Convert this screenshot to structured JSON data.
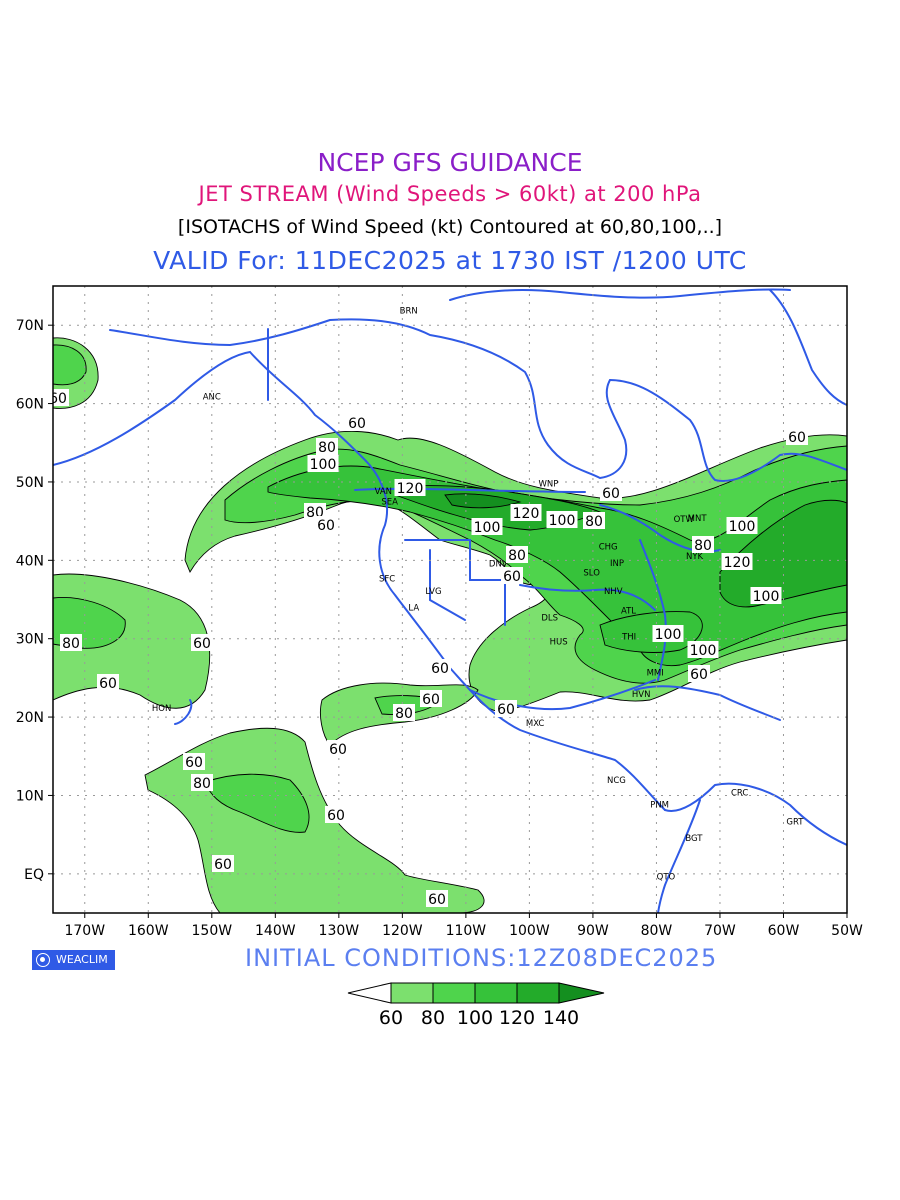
{
  "titles": {
    "line1": "NCEP GFS GUIDANCE",
    "line2": "JET STREAM (Wind Speeds > 60kt) at 200 hPa",
    "line3": "[ISOTACHS of Wind Speed (kt) Contoured at 60,80,100,..]",
    "line4": "VALID For: 11DEC2025 at 1730 IST /1200 UTC"
  },
  "map": {
    "lat_labels": [
      "70N",
      "60N",
      "50N",
      "40N",
      "30N",
      "20N",
      "10N",
      "EQ"
    ],
    "lon_labels": [
      "170W",
      "160W",
      "150W",
      "140W",
      "130W",
      "120W",
      "110W",
      "100W",
      "90W",
      "80W",
      "70W",
      "60W",
      "50W"
    ],
    "lon_range": [
      -175,
      -50
    ],
    "lat_range": [
      -5,
      75
    ],
    "grid": "dotted",
    "stations": [
      "BRN",
      "ANC",
      "VAN",
      "SEA",
      "WNP",
      "OTW",
      "MNT",
      "CHG",
      "NYK",
      "INP",
      "DNV",
      "SLO",
      "SFC",
      "LVG",
      "LA",
      "NHV",
      "DLS",
      "ATL",
      "HUS",
      "THI",
      "MMI",
      "HVN",
      "MXC",
      "HON",
      "NCG",
      "PNM",
      "CRC",
      "GRT",
      "BGT",
      "QTO"
    ],
    "contour_labels": [
      "60",
      "80",
      "100",
      "120"
    ]
  },
  "colors": {
    "c60": "#7ce06e",
    "c80": "#4fd44c",
    "c100": "#36c23a",
    "c120": "#23ab2a",
    "c140": "#148f1f",
    "coast": "#2f5ae6",
    "title_purple": "#8a1ec8",
    "title_pink": "#e0157a"
  },
  "legend": {
    "labels": [
      "60",
      "80",
      "100",
      "120",
      "140"
    ]
  },
  "logo": {
    "text": "WEACLIM",
    "icon": "globe-icon"
  },
  "initial_conditions": "INITIAL CONDITIONS:12Z08DEC2025"
}
